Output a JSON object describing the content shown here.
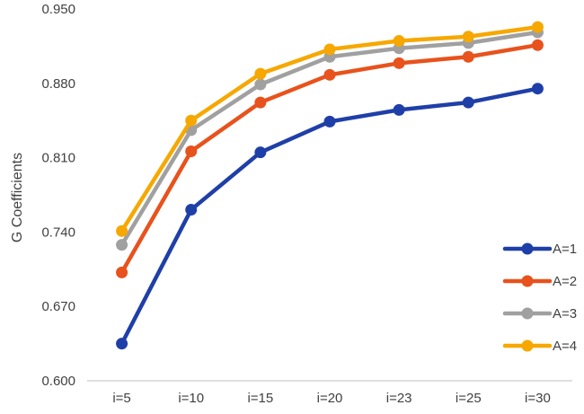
{
  "chart_data": {
    "type": "line",
    "title": "",
    "xlabel": "",
    "ylabel": "G Coefficients",
    "categories": [
      "i=5",
      "i=10",
      "i=15",
      "i=20",
      "i=23",
      "i=25",
      "i=30"
    ],
    "ylim": [
      0.6,
      0.95
    ],
    "yticks": [
      "0.600",
      "0.670",
      "0.740",
      "0.810",
      "0.880",
      "0.950"
    ],
    "ytick_values": [
      0.6,
      0.67,
      0.74,
      0.81,
      0.88,
      0.95
    ],
    "legend_position": "right",
    "grid": false,
    "series": [
      {
        "name": "A=1",
        "color": "#1f3fa8",
        "values": [
          0.635,
          0.761,
          0.815,
          0.844,
          0.855,
          0.862,
          0.875
        ]
      },
      {
        "name": "A=2",
        "color": "#e8521c",
        "values": [
          0.702,
          0.816,
          0.862,
          0.888,
          0.899,
          0.905,
          0.916
        ]
      },
      {
        "name": "A=3",
        "color": "#a0a0a0",
        "values": [
          0.728,
          0.836,
          0.879,
          0.905,
          0.913,
          0.918,
          0.928
        ]
      },
      {
        "name": "A=4",
        "color": "#f6a800",
        "values": [
          0.741,
          0.845,
          0.889,
          0.912,
          0.92,
          0.924,
          0.933
        ]
      }
    ]
  }
}
